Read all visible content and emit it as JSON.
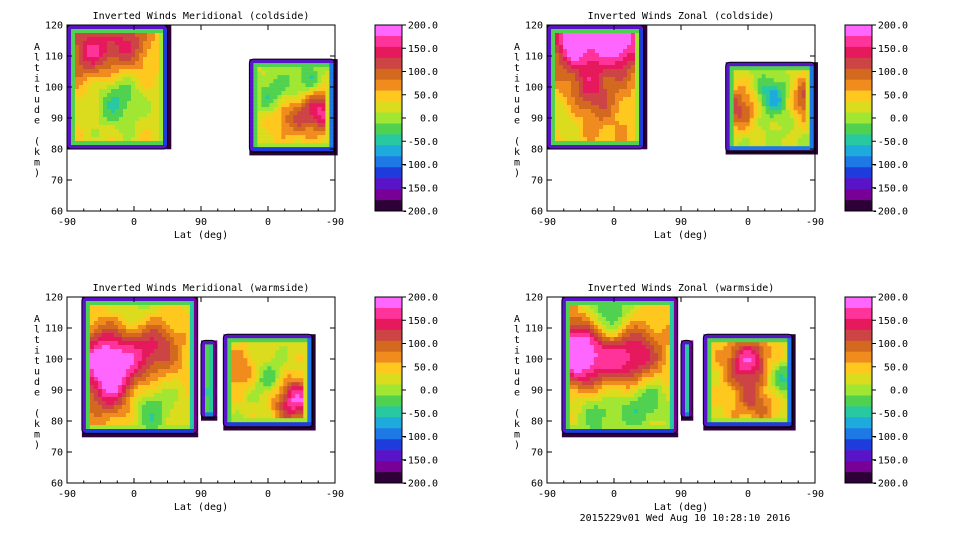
{
  "footer": "2015229v01 Wed Aug 10 10:28:10 2016",
  "colorbar": {
    "labels": [
      "200.0",
      "150.0",
      "100.0",
      "50.0",
      "0.0",
      "-50.0",
      "-100.0",
      "-150.0",
      "-200.0"
    ],
    "colors_top_to_bottom": [
      "#ff66ff",
      "#ff3399",
      "#e6195c",
      "#cc4444",
      "#d2691e",
      "#f08c1e",
      "#ffc81e",
      "#dcdc1e",
      "#a0e632",
      "#50d250",
      "#28c8a0",
      "#1eaadc",
      "#1e78e6",
      "#1e3cdc",
      "#5a14c8",
      "#780096",
      "#2d0037"
    ]
  },
  "chart_data": [
    {
      "type": "heatmap",
      "title": "Inverted Winds Meridional (coldside)",
      "xlabel": "Lat (deg)",
      "ylabel": "Altitude (km)",
      "xticks": [
        "-90",
        "0",
        "90",
        "0",
        "-90"
      ],
      "yticks": [
        "60",
        "70",
        "80",
        "90",
        "100",
        "110",
        "120"
      ],
      "ylim": [
        60,
        120
      ],
      "zlim": [
        -200,
        200
      ],
      "blobs": [
        {
          "x": [
            -90,
            45
          ],
          "y": [
            80,
            120
          ],
          "hot": [
            [
              0.22,
              0.2,
              0.55
            ],
            [
              0.6,
              0.15,
              0.45
            ]
          ],
          "cool": [
            [
              0.5,
              0.6,
              -0.35
            ]
          ],
          "base": 0.15
        },
        {
          "x": [
            155,
            270
          ],
          "y": [
            79,
            109
          ],
          "hot": [
            [
              0.85,
              0.55,
              0.7
            ],
            [
              0.45,
              0.6,
              0.4
            ]
          ],
          "cool": [
            [
              0.3,
              0.4,
              -0.35
            ],
            [
              0.7,
              0.25,
              -0.3
            ]
          ],
          "base": 0.1
        }
      ]
    },
    {
      "type": "heatmap",
      "title": "Inverted Winds Zonal (coldside)",
      "xlabel": "Lat (deg)",
      "ylabel": "Altitude (km)",
      "xticks": [
        "-90",
        "0",
        "90",
        "0",
        "-90"
      ],
      "yticks": [
        "60",
        "70",
        "80",
        "90",
        "100",
        "110",
        "120"
      ],
      "ylim": [
        60,
        120
      ],
      "zlim": [
        -200,
        200
      ],
      "blobs": [
        {
          "x": [
            -90,
            40
          ],
          "y": [
            80,
            120
          ],
          "hot": [
            [
              0.3,
              0.1,
              0.85
            ],
            [
              0.75,
              0.12,
              0.8
            ],
            [
              0.45,
              0.55,
              0.4
            ]
          ],
          "cool": [
            [
              0.2,
              0.75,
              -0.2
            ]
          ],
          "base": 0.25
        },
        {
          "x": [
            150,
            270
          ],
          "y": [
            79,
            108
          ],
          "hot": [
            [
              0.15,
              0.5,
              0.55
            ],
            [
              0.9,
              0.4,
              0.6
            ]
          ],
          "cool": [
            [
              0.55,
              0.4,
              -0.5
            ]
          ],
          "base": 0.05
        }
      ]
    },
    {
      "type": "heatmap",
      "title": "Inverted Winds Meridional (warmside)",
      "xlabel": "Lat (deg)",
      "ylabel": "Altitude (km)",
      "xticks": [
        "-90",
        "0",
        "90",
        "0",
        "-90"
      ],
      "yticks": [
        "60",
        "70",
        "80",
        "90",
        "100",
        "110",
        "120"
      ],
      "ylim": [
        60,
        120
      ],
      "zlim": [
        -200,
        200
      ],
      "blobs": [
        {
          "x": [
            -70,
            85
          ],
          "y": [
            76,
            120
          ],
          "hot": [
            [
              0.2,
              0.45,
              0.75
            ],
            [
              0.6,
              0.35,
              0.6
            ],
            [
              0.3,
              0.7,
              0.5
            ]
          ],
          "cool": [
            [
              0.5,
              0.15,
              -0.3
            ],
            [
              0.55,
              0.8,
              -0.4
            ]
          ],
          "base": 0.15
        },
        {
          "x": [
            90,
            110
          ],
          "y": [
            81,
            106
          ],
          "hot": [
            [
              0.5,
              0.5,
              0.3
            ]
          ],
          "cool": [
            [
              0.5,
              0.6,
              -0.4
            ]
          ],
          "base": 0.0
        },
        {
          "x": [
            120,
            240
          ],
          "y": [
            78,
            108
          ],
          "hot": [
            [
              0.2,
              0.4,
              0.35
            ],
            [
              0.8,
              0.7,
              0.8
            ]
          ],
          "cool": [
            [
              0.5,
              0.5,
              -0.35
            ]
          ],
          "base": 0.1
        }
      ]
    },
    {
      "type": "heatmap",
      "title": "Inverted Winds Zonal (warmside)",
      "xlabel": "Lat (deg)",
      "ylabel": "Altitude (km)",
      "xticks": [
        "-90",
        "0",
        "90",
        "0",
        "-90"
      ],
      "yticks": [
        "60",
        "70",
        "80",
        "90",
        "100",
        "110",
        "120"
      ],
      "ylim": [
        60,
        120
      ],
      "zlim": [
        -200,
        200
      ],
      "blobs": [
        {
          "x": [
            -70,
            85
          ],
          "y": [
            76,
            120
          ],
          "hot": [
            [
              0.15,
              0.4,
              1.0
            ],
            [
              0.6,
              0.45,
              0.7
            ]
          ],
          "cool": [
            [
              0.4,
              0.15,
              -0.5
            ],
            [
              0.7,
              0.75,
              -0.45
            ],
            [
              0.3,
              0.85,
              -0.3
            ]
          ],
          "base": 0.2
        },
        {
          "x": [
            90,
            105
          ],
          "y": [
            81,
            106
          ],
          "hot": [
            [
              0.5,
              0.5,
              0.3
            ]
          ],
          "cool": [],
          "base": 0.0
        },
        {
          "x": [
            120,
            240
          ],
          "y": [
            78,
            108
          ],
          "hot": [
            [
              0.5,
              0.3,
              0.7
            ],
            [
              0.6,
              0.7,
              0.4
            ]
          ],
          "cool": [
            [
              0.85,
              0.5,
              -0.4
            ]
          ],
          "base": 0.15
        }
      ]
    }
  ]
}
